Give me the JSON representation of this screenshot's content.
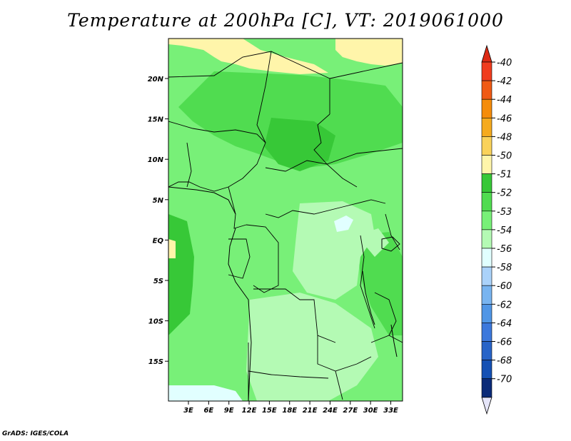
{
  "title": "Temperature at 200hPa [C], VT: 2019061000",
  "credit": "GrADS: IGES/COLA",
  "lat_ticks": [
    "20N",
    "15N",
    "10N",
    "5N",
    "EQ",
    "5S",
    "10S",
    "15S"
  ],
  "lon_ticks": [
    "3E",
    "6E",
    "9E",
    "12E",
    "15E",
    "18E",
    "21E",
    "24E",
    "27E",
    "30E",
    "33E"
  ],
  "colorbar": {
    "labels": [
      "-40",
      "-42",
      "-44",
      "-46",
      "-48",
      "-50",
      "-51",
      "-52",
      "-53",
      "-54",
      "-56",
      "-58",
      "-60",
      "-62",
      "-64",
      "-66",
      "-68",
      "-70"
    ],
    "colors": [
      "#f03c1e",
      "#f05a14",
      "#f58c0a",
      "#f5aa1e",
      "#fad25a",
      "#fff5aa",
      "#37c837",
      "#50dc50",
      "#78f078",
      "#b4fab4",
      "#e1ffff",
      "#aad2fa",
      "#78b4f0",
      "#5096e6",
      "#3c78dc",
      "#2864c8",
      "#1450b4",
      "#0a2a78"
    ],
    "top_color": "#dc2a14",
    "bottom_color": "#e6e6fa"
  },
  "colors": {
    "background": "#78f078",
    "cold_band": "#b4fab4",
    "warm_band": "#50dc50",
    "warmest": "#37c837",
    "yellow": "#fff5aa",
    "cyan": "#e1ffff"
  }
}
